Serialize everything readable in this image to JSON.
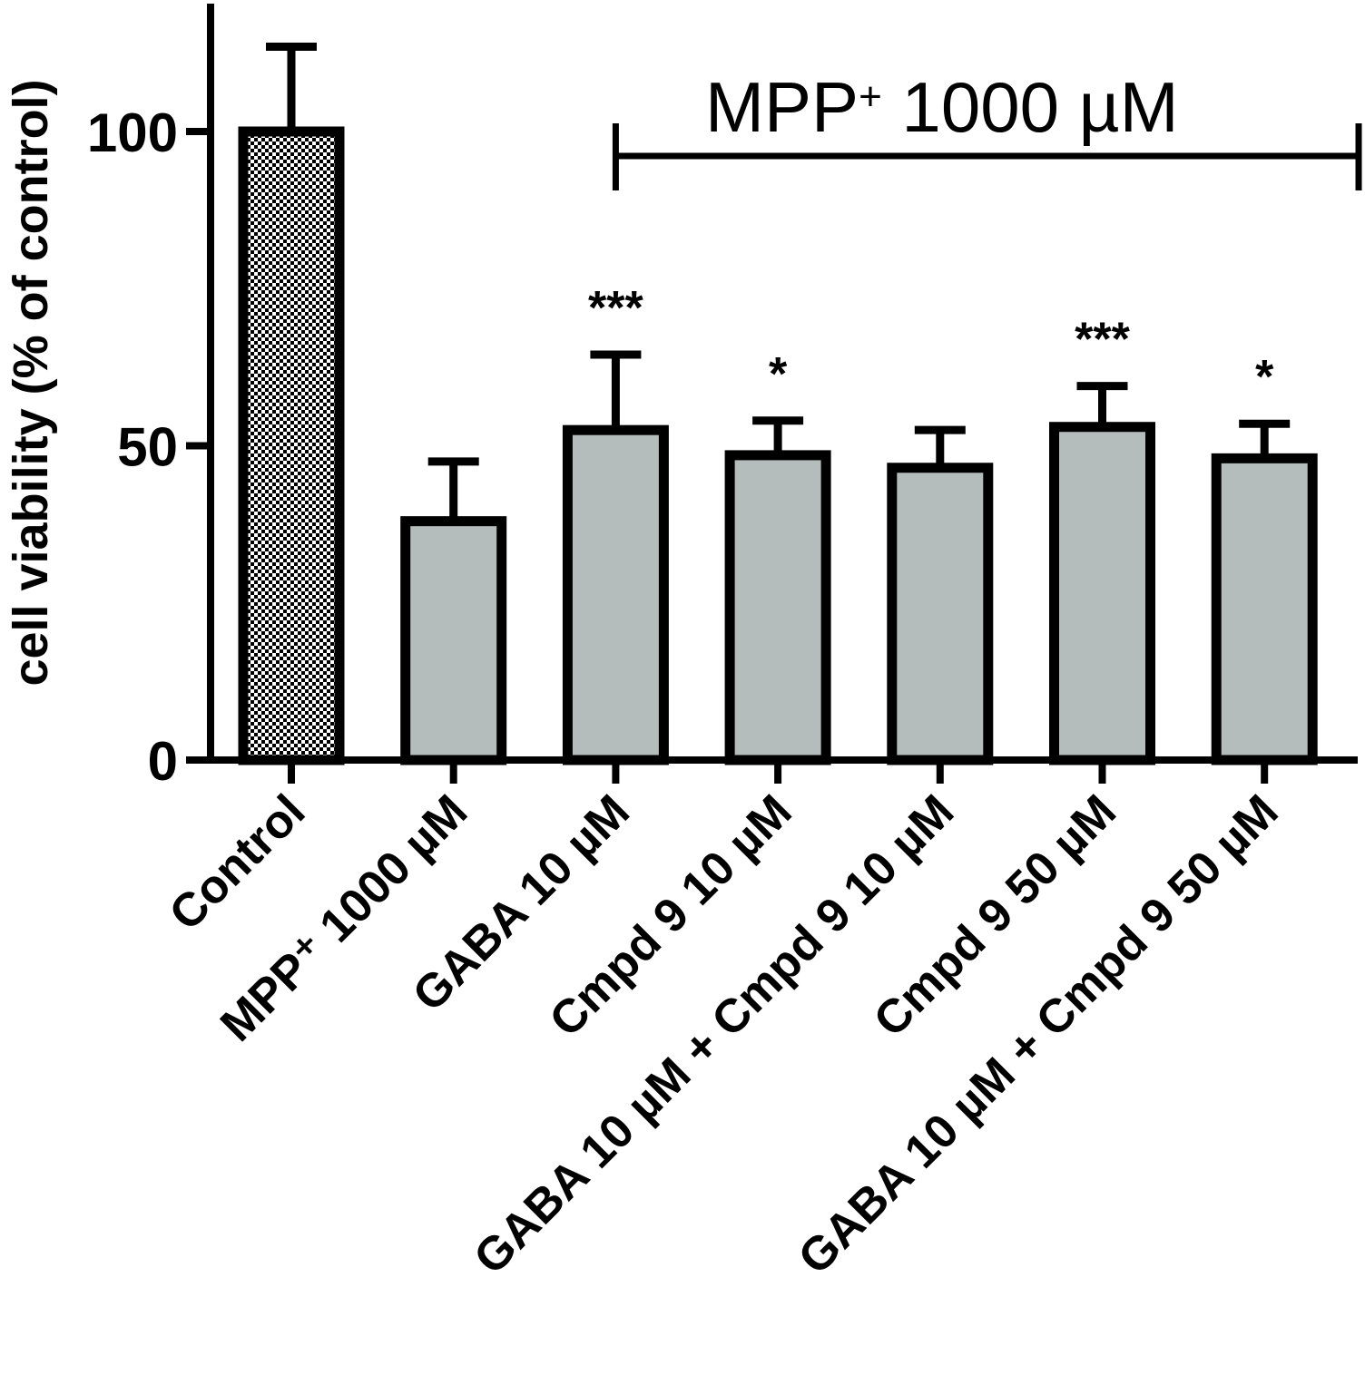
{
  "chart_data": {
    "type": "bar",
    "ylabel": "cell viability (% of control)",
    "ylim": [
      0,
      120
    ],
    "yticks": [
      "0",
      "50",
      "100"
    ],
    "grid": false,
    "categories": [
      "Control",
      "MPP⁺ 1000 µM",
      "GABA 10 µM",
      "Cmpd 9 10 µM",
      "GABA 10 µM + Cmpd 9 10 µM",
      "Cmpd 9 50  µM",
      "GABA 10 µM + Cmpd 9 50 µM"
    ],
    "values": [
      100,
      38,
      52.5,
      48.5,
      46.5,
      53,
      48
    ],
    "errors": [
      13.5,
      9.5,
      12,
      5.5,
      6,
      6.5,
      5.5
    ],
    "significance": [
      "",
      "",
      "***",
      "*",
      "",
      "***",
      "*"
    ],
    "colors": {
      "control_pattern": "checkered black/white",
      "bar_fill": "#b4bdbb",
      "outline": "#000000"
    },
    "annotation": {
      "text_main": "MPP",
      "text_sup": "+",
      "text_rest": " 1000 µM",
      "span_from": "GABA 10 µM",
      "span_to": "GABA 10 µM + Cmpd 9 50 µM"
    }
  }
}
